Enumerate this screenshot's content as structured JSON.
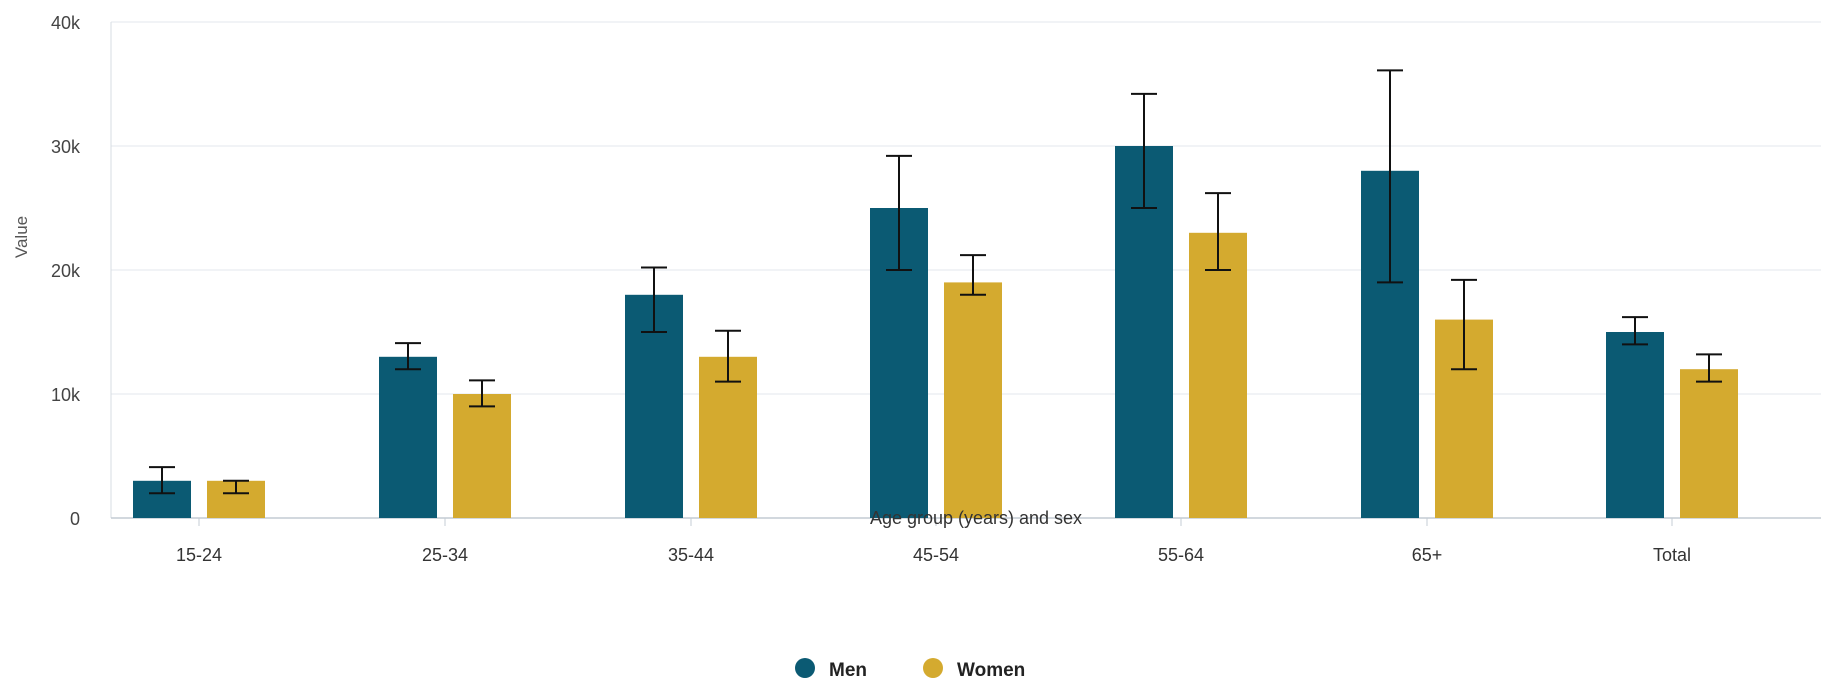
{
  "chart_data": {
    "type": "bar",
    "xlabel": "Age group (years) and sex",
    "ylabel": "Value",
    "ylim": [
      0,
      40000
    ],
    "yticks": [
      {
        "value": 0,
        "label": "0"
      },
      {
        "value": 10000,
        "label": "10k"
      },
      {
        "value": 20000,
        "label": "20k"
      },
      {
        "value": 30000,
        "label": "30k"
      },
      {
        "value": 40000,
        "label": "40k"
      }
    ],
    "grid": true,
    "legend_position": "bottom-center",
    "categories": [
      "15-24",
      "25-34",
      "35-44",
      "45-54",
      "55-64",
      "65+",
      "Total"
    ],
    "series": [
      {
        "name": "Men",
        "color": "#0b5a73",
        "values": [
          3000,
          13000,
          18000,
          25000,
          30000,
          28000,
          15000
        ],
        "error_low": [
          2000,
          12000,
          15000,
          20000,
          25000,
          19000,
          14000
        ],
        "error_high": [
          4100,
          14100,
          20200,
          29200,
          34200,
          36100,
          16200
        ]
      },
      {
        "name": "Women",
        "color": "#d4aa2f",
        "values": [
          3000,
          10000,
          13000,
          19000,
          23000,
          16000,
          12000
        ],
        "error_low": [
          2000,
          9000,
          11000,
          18000,
          20000,
          12000,
          11000
        ],
        "error_high": [
          3000,
          11100,
          15100,
          21200,
          26200,
          19200,
          13200
        ]
      }
    ]
  }
}
